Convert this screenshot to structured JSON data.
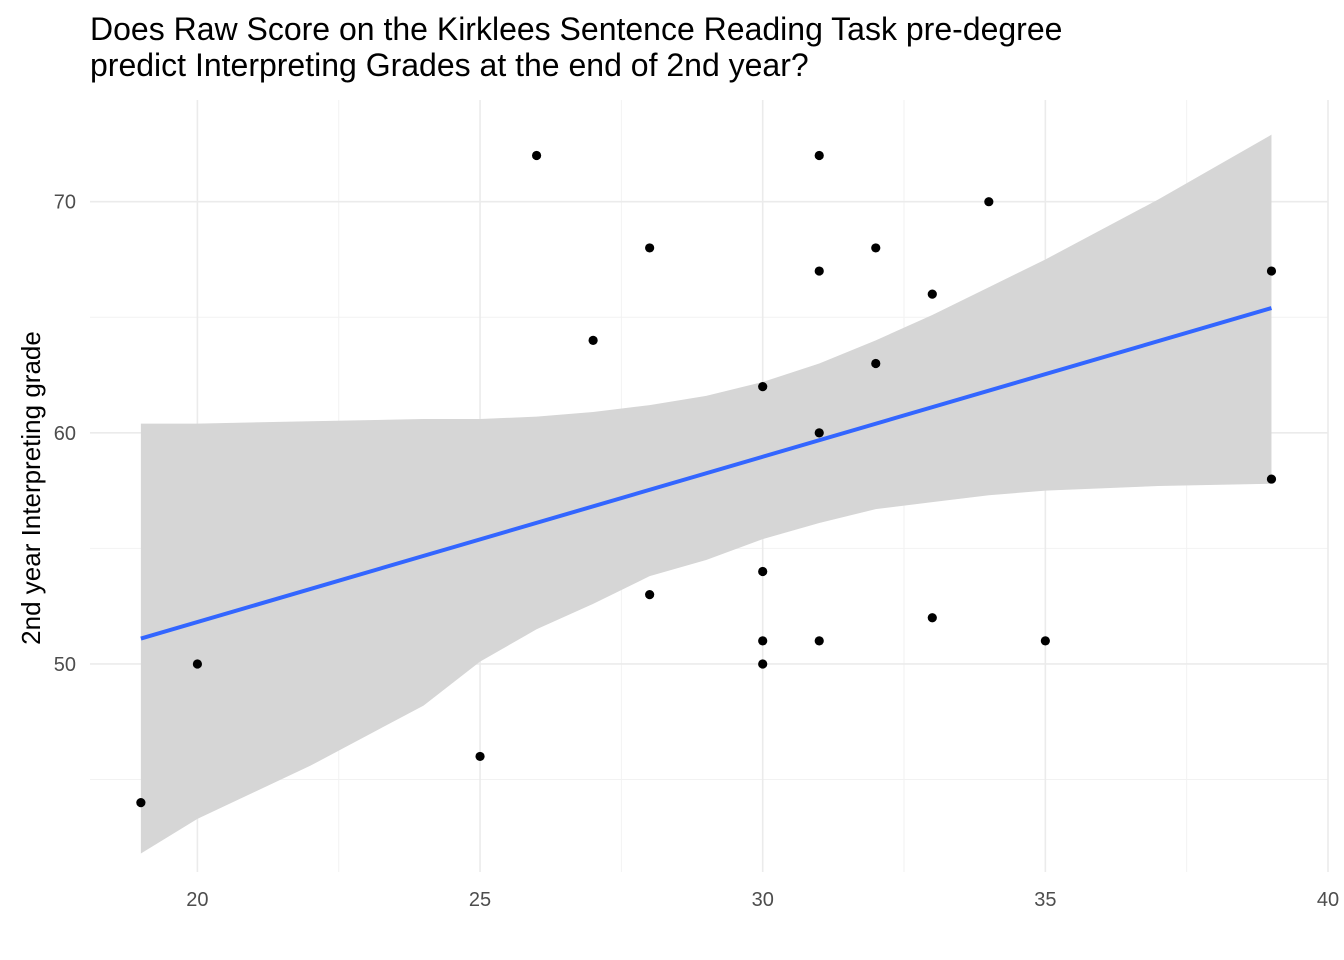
{
  "chart_data": {
    "type": "scatter",
    "title": "Does Raw Score on the Kirklees Sentence Reading Task pre-degree\npredict Interpreting Grades at the end of 2nd year?",
    "xlabel": "",
    "ylabel": "2nd year Interpreting grade",
    "xlim": [
      18.1,
      40.0
    ],
    "ylim": [
      41.0,
      74.4
    ],
    "x_ticks": [
      20,
      25,
      30,
      35,
      40
    ],
    "x_tick_labels": [
      "20",
      "25",
      "30",
      "35",
      "40"
    ],
    "y_ticks": [
      50,
      60,
      70
    ],
    "y_tick_labels": [
      "50",
      "60",
      "70"
    ],
    "grid": true,
    "points": [
      {
        "x": 19,
        "y": 44
      },
      {
        "x": 20,
        "y": 50
      },
      {
        "x": 25,
        "y": 46
      },
      {
        "x": 26,
        "y": 72
      },
      {
        "x": 27,
        "y": 64
      },
      {
        "x": 28,
        "y": 68
      },
      {
        "x": 28,
        "y": 53
      },
      {
        "x": 30,
        "y": 62
      },
      {
        "x": 30,
        "y": 54
      },
      {
        "x": 30,
        "y": 51
      },
      {
        "x": 30,
        "y": 50
      },
      {
        "x": 31,
        "y": 72
      },
      {
        "x": 31,
        "y": 67
      },
      {
        "x": 31,
        "y": 60
      },
      {
        "x": 31,
        "y": 51
      },
      {
        "x": 32,
        "y": 68
      },
      {
        "x": 32,
        "y": 63
      },
      {
        "x": 33,
        "y": 66
      },
      {
        "x": 33,
        "y": 52
      },
      {
        "x": 34,
        "y": 70
      },
      {
        "x": 35,
        "y": 51
      },
      {
        "x": 39,
        "y": 67
      },
      {
        "x": 39,
        "y": 58
      }
    ],
    "trend_line": {
      "method": "linear regression",
      "color": "#3366ff",
      "x": [
        19,
        39
      ],
      "y": [
        51.1,
        65.4
      ]
    },
    "confidence_band": {
      "color": "#d6d6d6",
      "points": [
        {
          "x": 19,
          "low": 41.8,
          "high": 60.4
        },
        {
          "x": 20,
          "low": 43.3,
          "high": 60.4
        },
        {
          "x": 22,
          "low": 45.6,
          "high": 60.5
        },
        {
          "x": 24,
          "low": 48.2,
          "high": 60.6
        },
        {
          "x": 25,
          "low": 50.1,
          "high": 60.6
        },
        {
          "x": 26,
          "low": 51.5,
          "high": 60.7
        },
        {
          "x": 27,
          "low": 52.6,
          "high": 60.9
        },
        {
          "x": 28,
          "low": 53.8,
          "high": 61.2
        },
        {
          "x": 29,
          "low": 54.5,
          "high": 61.6
        },
        {
          "x": 30,
          "low": 55.4,
          "high": 62.2
        },
        {
          "x": 31,
          "low": 56.1,
          "high": 63.0
        },
        {
          "x": 32,
          "low": 56.7,
          "high": 64.0
        },
        {
          "x": 33,
          "low": 57.0,
          "high": 65.1
        },
        {
          "x": 34,
          "low": 57.3,
          "high": 66.3
        },
        {
          "x": 35,
          "low": 57.5,
          "high": 67.5
        },
        {
          "x": 37,
          "low": 57.7,
          "high": 70.1
        },
        {
          "x": 39,
          "low": 57.8,
          "high": 72.9
        }
      ]
    },
    "point_color": "#000000"
  }
}
